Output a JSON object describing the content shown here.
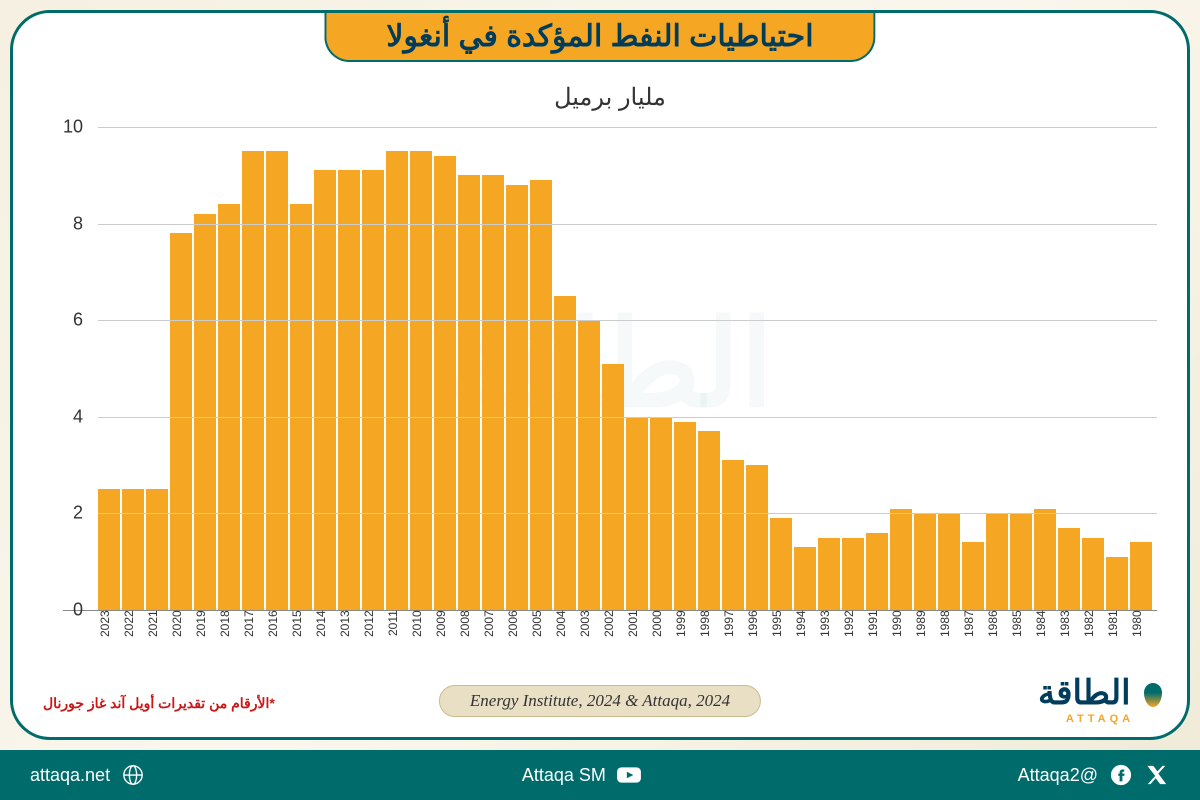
{
  "title": "احتياطيات النفط المؤكدة في أنغولا",
  "chart": {
    "type": "bar",
    "y_title": "مليار برميل",
    "ylim": [
      0,
      10
    ],
    "ytick_step": 2,
    "bar_color": "#f5a623",
    "grid_color": "#cccccc",
    "axis_color": "#888888",
    "background_color": "#ffffff",
    "label_fontsize": 18,
    "xlabel_fontsize": 12,
    "years": [
      "1980",
      "1981",
      "1982",
      "1983",
      "1984",
      "1985",
      "1986",
      "1987",
      "1988",
      "1989",
      "1990",
      "1991",
      "1992",
      "1993",
      "1994",
      "1995",
      "1996",
      "1997",
      "1998",
      "1999",
      "2000",
      "2001",
      "2002",
      "2003",
      "2004",
      "2005",
      "2006",
      "2007",
      "2008",
      "2009",
      "2010",
      "2011",
      "2012",
      "2013",
      "2014",
      "2015",
      "2016",
      "2017",
      "2018",
      "2019",
      "2020",
      "2021",
      "2022",
      "2023"
    ],
    "values": [
      1.4,
      1.1,
      1.5,
      1.7,
      2.1,
      2.0,
      2.0,
      1.4,
      2.0,
      2.0,
      2.1,
      1.6,
      1.5,
      1.5,
      1.3,
      1.9,
      3.0,
      3.1,
      3.7,
      3.9,
      4.0,
      4.0,
      5.1,
      6.0,
      6.5,
      8.9,
      8.8,
      9.0,
      9.0,
      9.4,
      9.5,
      9.5,
      9.1,
      9.1,
      9.1,
      8.4,
      9.5,
      9.5,
      8.4,
      8.2,
      7.8,
      2.5,
      2.5,
      2.5
    ]
  },
  "source": "Energy Institute, 2024 & Attaqa, 2024",
  "footnote": "*الأرقام من تقديرات أويل آند غاز جورنال",
  "logo": {
    "main": "الطاقة",
    "sub": "ATTAQA"
  },
  "footer": {
    "handle": "@Attaqa2",
    "youtube": "Attaqa SM",
    "website": "attaqa.net"
  },
  "colors": {
    "frame_border": "#006b6b",
    "title_bg": "#f5a623",
    "title_text": "#003d5c",
    "footer_bg": "#006b6b",
    "footnote_color": "#c91818",
    "body_bg": "#f5f0e1"
  }
}
